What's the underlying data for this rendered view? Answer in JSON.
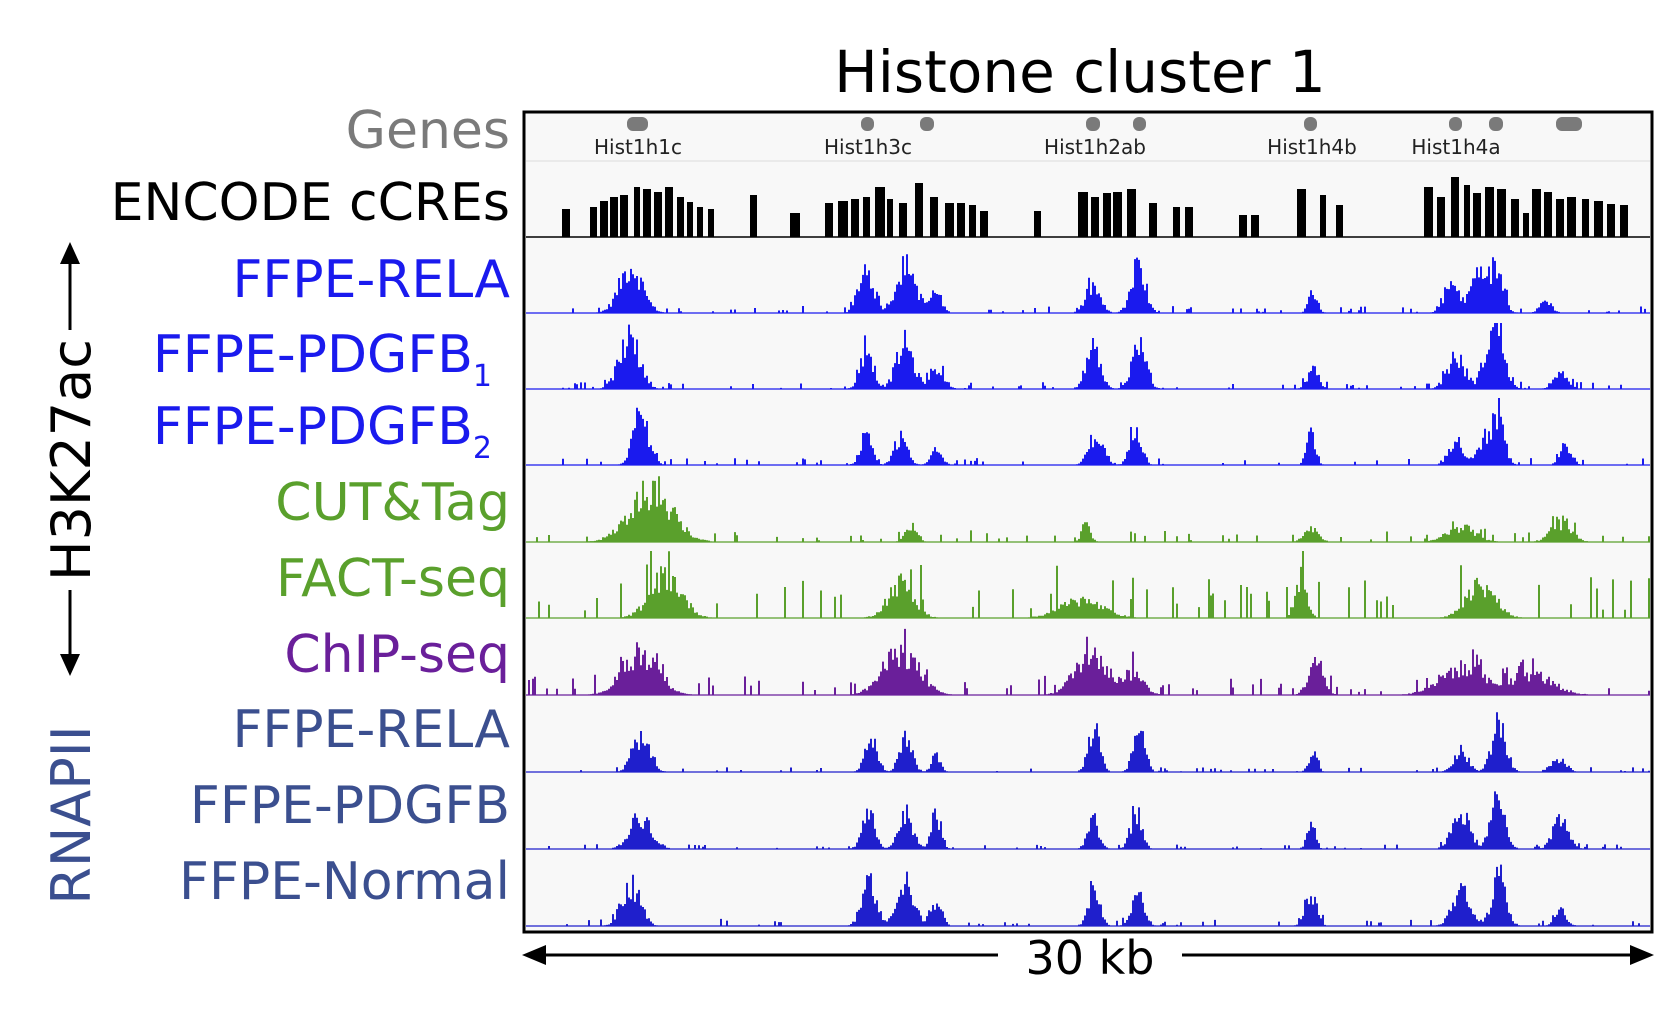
{
  "figure": {
    "title": "Histone cluster 1",
    "scale_label": "30 kb",
    "mark_labels": {
      "h3k27ac": "H3K27ac",
      "rnapii": "RNAPII"
    }
  },
  "colors": {
    "genes": "#7a7a7a",
    "ccre": "#000000",
    "ffpe_blue": "#1a1aee",
    "cuttag_green": "#5aa02c",
    "chip_purple": "#6a1f9a",
    "rnapii_label": "#3b4f8f",
    "rnapii_signal": "#1f1fcc",
    "panel_bg": "#f8f8f8"
  },
  "genes_track": {
    "label": "Genes",
    "genes": [
      "Hist1h1c",
      "Hist1h3c",
      "Hist1h2ab",
      "Hist1h4b",
      "Hist1h4a"
    ]
  },
  "ccre_track": {
    "label": "ENCODE cCREs"
  },
  "tracks": [
    {
      "label": "FFPE-RELA",
      "sub": "",
      "group": "H3K27ac",
      "color_key": "ffpe_blue"
    },
    {
      "label": "FFPE-PDGFB",
      "sub": "1",
      "group": "H3K27ac",
      "color_key": "ffpe_blue"
    },
    {
      "label": "FFPE-PDGFB",
      "sub": "2",
      "group": "H3K27ac",
      "color_key": "ffpe_blue"
    },
    {
      "label": "CUT&Tag",
      "sub": "",
      "group": "H3K27ac",
      "color_key": "cuttag_green"
    },
    {
      "label": "FACT-seq",
      "sub": "",
      "group": "H3K27ac",
      "color_key": "cuttag_green"
    },
    {
      "label": "ChIP-seq",
      "sub": "",
      "group": "H3K27ac",
      "color_key": "chip_purple"
    },
    {
      "label": "FFPE-RELA",
      "sub": "",
      "group": "RNAPII",
      "color_key": "rnapii_signal"
    },
    {
      "label": "FFPE-PDGFB",
      "sub": "",
      "group": "RNAPII",
      "color_key": "rnapii_signal"
    },
    {
      "label": "FFPE-Normal",
      "sub": "",
      "group": "RNAPII",
      "color_key": "rnapii_signal"
    }
  ]
}
